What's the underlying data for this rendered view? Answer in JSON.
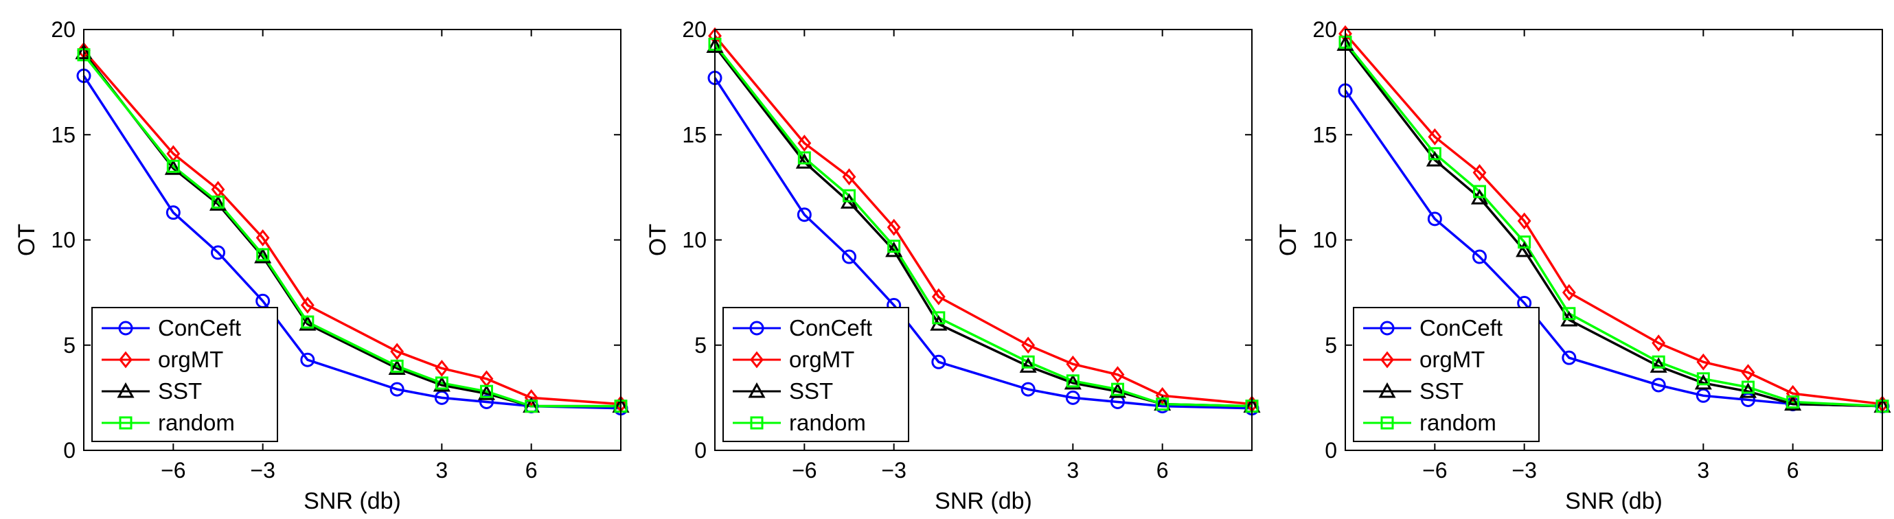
{
  "chart_data": [
    {
      "type": "line",
      "xlabel": "SNR (db)",
      "ylabel": "OT",
      "xlim": [
        -9,
        9
      ],
      "ylim": [
        0,
        20
      ],
      "xticks": [
        -6,
        -3,
        3,
        6
      ],
      "xtick_labels": [
        "−6",
        "−3",
        "3",
        "6"
      ],
      "yticks": [
        0,
        5,
        10,
        15,
        20
      ],
      "ytick_labels": [
        "0",
        "5",
        "10",
        "15",
        "20"
      ],
      "x": [
        -9,
        -6,
        -4.5,
        -3,
        -1.5,
        1.5,
        3,
        4.5,
        6,
        9
      ],
      "legend_position": "bottom-left",
      "series": [
        {
          "name": "ConCeft",
          "color": "#0000ff",
          "marker": "circle",
          "x": [
            -9,
            -6,
            -4.5,
            -3,
            -1.5,
            1.5,
            3,
            4.5,
            6,
            9
          ],
          "values": [
            17.8,
            11.3,
            9.4,
            7.1,
            4.3,
            2.9,
            2.5,
            2.3,
            2.1,
            2.0
          ]
        },
        {
          "name": "orgMT",
          "color": "#ff0000",
          "marker": "diamond",
          "x": [
            -9,
            -6,
            -4.5,
            -3,
            -1.5,
            1.5,
            3,
            4.5,
            6,
            9
          ],
          "values": [
            19.0,
            14.1,
            12.4,
            10.1,
            6.9,
            4.7,
            3.9,
            3.4,
            2.5,
            2.2
          ]
        },
        {
          "name": "SST",
          "color": "#000000",
          "marker": "triangle",
          "x": [
            -9,
            -6,
            -4.5,
            -3,
            -1.5,
            1.5,
            3,
            4.5,
            6,
            9
          ],
          "values": [
            18.9,
            13.4,
            11.7,
            9.2,
            6.0,
            3.9,
            3.1,
            2.7,
            2.1,
            2.1
          ]
        },
        {
          "name": "random",
          "color": "#00ff00",
          "marker": "square",
          "x": [
            -9,
            -6,
            -4.5,
            -3,
            -1.5,
            1.5,
            3,
            4.5,
            6,
            9
          ],
          "values": [
            18.8,
            13.5,
            11.8,
            9.3,
            6.1,
            4.0,
            3.2,
            2.8,
            2.1,
            2.1
          ]
        }
      ]
    },
    {
      "type": "line",
      "xlabel": "SNR (db)",
      "ylabel": "OT",
      "xlim": [
        -9,
        9
      ],
      "ylim": [
        0,
        20
      ],
      "xticks": [
        -6,
        -3,
        3,
        6
      ],
      "xtick_labels": [
        "−6",
        "−3",
        "3",
        "6"
      ],
      "yticks": [
        0,
        5,
        10,
        15,
        20
      ],
      "ytick_labels": [
        "0",
        "5",
        "10",
        "15",
        "20"
      ],
      "legend_position": "bottom-left",
      "series": [
        {
          "name": "ConCeft",
          "color": "#0000ff",
          "marker": "circle",
          "x": [
            -9,
            -6,
            -4.5,
            -3,
            -1.5,
            1.5,
            3,
            4.5,
            6,
            9
          ],
          "values": [
            17.7,
            11.2,
            9.2,
            6.9,
            4.2,
            2.9,
            2.5,
            2.3,
            2.1,
            2.0
          ]
        },
        {
          "name": "orgMT",
          "color": "#ff0000",
          "marker": "diamond",
          "x": [
            -9,
            -6,
            -4.5,
            -3,
            -1.5,
            1.5,
            3,
            4.5,
            6,
            9
          ],
          "values": [
            19.7,
            14.6,
            13.0,
            10.6,
            7.3,
            5.0,
            4.1,
            3.6,
            2.6,
            2.2
          ]
        },
        {
          "name": "SST",
          "color": "#000000",
          "marker": "triangle",
          "x": [
            -9,
            -6,
            -4.5,
            -3,
            -1.5,
            1.5,
            3,
            4.5,
            6,
            9
          ],
          "values": [
            19.2,
            13.7,
            11.8,
            9.5,
            6.0,
            4.0,
            3.2,
            2.8,
            2.2,
            2.1
          ]
        },
        {
          "name": "random",
          "color": "#00ff00",
          "marker": "square",
          "x": [
            -9,
            -6,
            -4.5,
            -3,
            -1.5,
            1.5,
            3,
            4.5,
            6,
            9
          ],
          "values": [
            19.3,
            13.9,
            12.1,
            9.7,
            6.3,
            4.2,
            3.3,
            2.9,
            2.2,
            2.1
          ]
        }
      ]
    },
    {
      "type": "line",
      "xlabel": "SNR (db)",
      "ylabel": "OT",
      "xlim": [
        -9,
        9
      ],
      "ylim": [
        0,
        20
      ],
      "xticks": [
        -6,
        -3,
        3,
        6
      ],
      "xtick_labels": [
        "−6",
        "−3",
        "3",
        "6"
      ],
      "yticks": [
        0,
        5,
        10,
        15,
        20
      ],
      "ytick_labels": [
        "0",
        "5",
        "10",
        "15",
        "20"
      ],
      "legend_position": "bottom-left",
      "series": [
        {
          "name": "ConCeft",
          "color": "#0000ff",
          "marker": "circle",
          "x": [
            -9,
            -6,
            -4.5,
            -3,
            -1.5,
            1.5,
            3,
            4.5,
            6,
            9
          ],
          "values": [
            17.1,
            11.0,
            9.2,
            7.0,
            4.4,
            3.1,
            2.6,
            2.4,
            2.2,
            2.1
          ]
        },
        {
          "name": "orgMT",
          "color": "#ff0000",
          "marker": "diamond",
          "x": [
            -9,
            -6,
            -4.5,
            -3,
            -1.5,
            1.5,
            3,
            4.5,
            6,
            9
          ],
          "values": [
            19.8,
            14.9,
            13.2,
            10.9,
            7.5,
            5.1,
            4.2,
            3.7,
            2.7,
            2.2
          ]
        },
        {
          "name": "SST",
          "color": "#000000",
          "marker": "triangle",
          "x": [
            -9,
            -6,
            -4.5,
            -3,
            -1.5,
            1.5,
            3,
            4.5,
            6,
            9
          ],
          "values": [
            19.3,
            13.8,
            12.0,
            9.5,
            6.2,
            4.0,
            3.2,
            2.8,
            2.2,
            2.1
          ]
        },
        {
          "name": "random",
          "color": "#00ff00",
          "marker": "square",
          "x": [
            -9,
            -6,
            -4.5,
            -3,
            -1.5,
            1.5,
            3,
            4.5,
            6,
            9
          ],
          "values": [
            19.4,
            14.1,
            12.3,
            9.9,
            6.5,
            4.2,
            3.4,
            3.0,
            2.3,
            2.1
          ]
        }
      ]
    }
  ]
}
